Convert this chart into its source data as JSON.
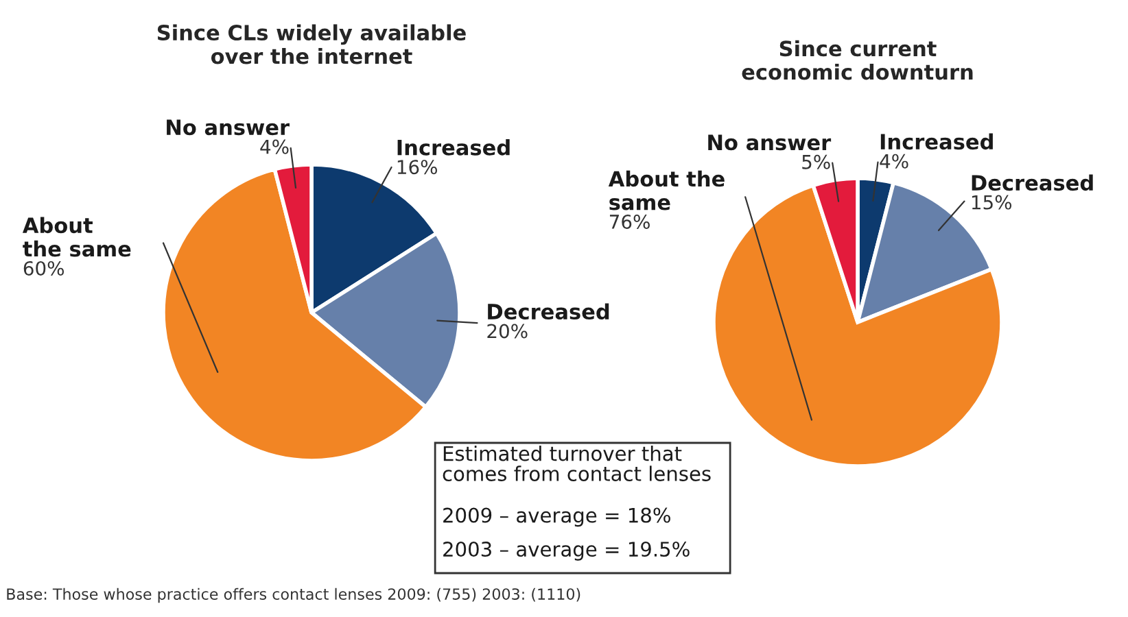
{
  "chart_data": [
    {
      "type": "pie",
      "title": "Since CLs widely available\nover the internet",
      "categories": [
        "Increased",
        "Decreased",
        "About the same",
        "No answer"
      ],
      "values": [
        16,
        20,
        60,
        4
      ],
      "value_labels": [
        "16%",
        "20%",
        "60%",
        "4%"
      ],
      "colors": [
        "#0d3a6e",
        "#6680aa",
        "#f28524",
        "#e31b3c"
      ],
      "annotations": [
        "Base: Those whose practice offers contact lenses 2009: (755) 2003: (1110)"
      ]
    },
    {
      "type": "pie",
      "title": "Since current\neconomic downturn",
      "categories": [
        "Increased",
        "Decreased",
        "About the same",
        "No answer"
      ],
      "values": [
        4,
        15,
        76,
        5
      ],
      "value_labels": [
        "4%",
        "15%",
        "76%",
        "5%"
      ],
      "colors": [
        "#0d3a6e",
        "#6680aa",
        "#f28524",
        "#e31b3c"
      ],
      "annotations": [
        "Estimated turnover that\ncomes from contact lenses",
        "2009 – average = 18%",
        "2003 – average = 19.5%"
      ]
    }
  ]
}
